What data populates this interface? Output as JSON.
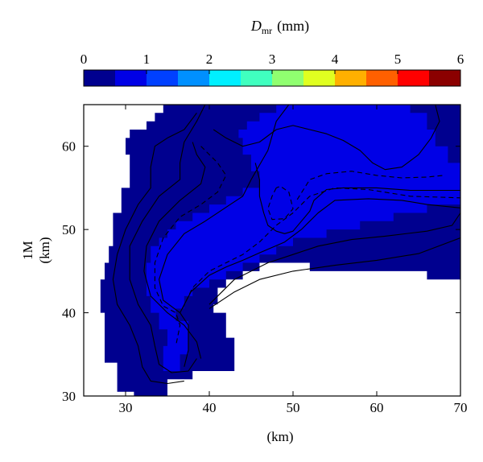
{
  "chart_data": {
    "type": "heatmap",
    "colorbar": {
      "label_main": "D",
      "label_sub": "mr",
      "label_unit": "(mm)",
      "ticks": [
        "0",
        "1",
        "2",
        "3",
        "4",
        "5",
        "6"
      ],
      "range": [
        0,
        6
      ],
      "bins": 12,
      "colors": [
        "#00008f",
        "#0000e6",
        "#0040ff",
        "#0090ff",
        "#00f0ff",
        "#40ffbf",
        "#90ff70",
        "#e0ff20",
        "#ffb000",
        "#ff6000",
        "#ff0000",
        "#8b0000"
      ]
    },
    "x_axis": {
      "label": "(km)",
      "ticks": [
        "30",
        "40",
        "50",
        "60",
        "70"
      ],
      "range": [
        25,
        70
      ]
    },
    "y_axis": {
      "label_line1": "1M",
      "label_line2": "(km)",
      "ticks": [
        "30",
        "40",
        "50",
        "60"
      ],
      "range": [
        30,
        65
      ]
    },
    "fields": {
      "outer_dark_region": {
        "color": "#00008f",
        "polygon": [
          [
            31,
            30
          ],
          [
            35,
            30
          ],
          [
            35,
            32
          ],
          [
            38,
            32
          ],
          [
            38,
            33
          ],
          [
            40,
            33
          ],
          [
            43,
            33
          ],
          [
            43,
            37
          ],
          [
            42,
            37
          ],
          [
            42,
            40
          ],
          [
            40.5,
            40
          ],
          [
            40.5,
            41
          ],
          [
            41,
            41
          ],
          [
            41,
            43
          ],
          [
            42,
            43
          ],
          [
            42,
            44
          ],
          [
            43,
            44
          ],
          [
            44,
            44
          ],
          [
            44,
            45
          ],
          [
            46,
            45
          ],
          [
            46,
            46
          ],
          [
            52,
            46
          ],
          [
            52,
            45
          ],
          [
            66,
            45
          ],
          [
            66,
            44
          ],
          [
            70,
            44
          ],
          [
            70,
            65
          ],
          [
            34.5,
            65
          ],
          [
            34.5,
            64
          ],
          [
            33.5,
            64
          ],
          [
            33.5,
            63
          ],
          [
            32.5,
            63
          ],
          [
            32.5,
            62
          ],
          [
            30.5,
            62
          ],
          [
            30.5,
            61
          ],
          [
            30,
            61
          ],
          [
            30,
            59
          ],
          [
            30.5,
            59
          ],
          [
            30.5,
            55
          ],
          [
            29.5,
            55
          ],
          [
            29.5,
            52
          ],
          [
            28.5,
            52
          ],
          [
            28.5,
            48
          ],
          [
            28,
            48
          ],
          [
            28,
            46
          ],
          [
            27.5,
            46
          ],
          [
            27.5,
            44
          ],
          [
            27,
            44
          ],
          [
            27,
            40
          ],
          [
            27.5,
            40
          ],
          [
            27.5,
            34
          ],
          [
            29,
            34
          ],
          [
            29,
            30.5
          ],
          [
            31,
            30.5
          ]
        ]
      },
      "inner_light_region": {
        "color": "#0000e6",
        "polygon": [
          [
            34.5,
            33
          ],
          [
            36.5,
            33
          ],
          [
            36.5,
            35
          ],
          [
            37.5,
            35
          ],
          [
            37.5,
            39
          ],
          [
            36,
            39
          ],
          [
            36,
            40.5
          ],
          [
            37,
            40.5
          ],
          [
            37,
            42
          ],
          [
            38,
            42
          ],
          [
            38,
            43
          ],
          [
            40,
            43
          ],
          [
            40,
            44
          ],
          [
            42,
            44
          ],
          [
            42,
            45
          ],
          [
            44,
            45
          ],
          [
            44,
            46
          ],
          [
            46,
            46
          ],
          [
            46,
            47
          ],
          [
            48,
            47
          ],
          [
            48,
            48
          ],
          [
            50,
            48
          ],
          [
            50,
            49
          ],
          [
            54,
            49
          ],
          [
            54,
            50
          ],
          [
            58,
            50
          ],
          [
            58,
            51
          ],
          [
            62,
            51
          ],
          [
            62,
            52
          ],
          [
            66,
            52
          ],
          [
            66,
            53
          ],
          [
            70,
            53
          ],
          [
            70,
            58
          ],
          [
            68.5,
            58
          ],
          [
            68.5,
            60
          ],
          [
            67,
            60
          ],
          [
            67,
            62
          ],
          [
            66,
            62
          ],
          [
            66,
            64
          ],
          [
            64,
            64
          ],
          [
            64,
            65
          ],
          [
            48,
            65
          ],
          [
            48,
            64
          ],
          [
            46,
            64
          ],
          [
            46,
            63
          ],
          [
            44.5,
            63
          ],
          [
            44.5,
            62
          ],
          [
            43.5,
            62
          ],
          [
            43.5,
            61
          ],
          [
            44,
            61
          ],
          [
            44,
            59
          ],
          [
            45,
            59
          ],
          [
            45,
            57
          ],
          [
            46,
            57
          ],
          [
            46,
            55
          ],
          [
            44,
            55
          ],
          [
            44,
            54
          ],
          [
            42,
            54
          ],
          [
            42,
            53
          ],
          [
            40,
            53
          ],
          [
            40,
            52
          ],
          [
            38,
            52
          ],
          [
            38,
            51
          ],
          [
            36,
            51
          ],
          [
            36,
            50
          ],
          [
            35,
            50
          ],
          [
            35,
            49
          ],
          [
            34,
            49
          ],
          [
            34,
            48
          ],
          [
            33,
            48
          ],
          [
            33,
            46
          ],
          [
            32.5,
            46
          ],
          [
            32.5,
            42
          ],
          [
            33,
            42
          ],
          [
            33,
            40
          ],
          [
            34,
            40
          ],
          [
            34,
            38
          ],
          [
            35,
            38
          ],
          [
            35,
            36
          ],
          [
            34.5,
            36
          ],
          [
            34.5,
            33
          ]
        ]
      }
    },
    "contours": [
      {
        "style": "solid",
        "points": [
          [
            38.5,
            64
          ],
          [
            37,
            62
          ],
          [
            35,
            61
          ],
          [
            33.5,
            60
          ],
          [
            33,
            57.5
          ],
          [
            33,
            55
          ],
          [
            31.5,
            53
          ],
          [
            30,
            50
          ],
          [
            29,
            47
          ],
          [
            28.5,
            44
          ],
          [
            29,
            41
          ],
          [
            30.5,
            38.5
          ],
          [
            31.5,
            36
          ],
          [
            32,
            33.5
          ],
          [
            33,
            31.8
          ],
          [
            35,
            31.5
          ],
          [
            37,
            31.8
          ]
        ]
      },
      {
        "style": "solid",
        "points": [
          [
            39.5,
            65
          ],
          [
            38.5,
            63
          ],
          [
            37,
            60.5
          ],
          [
            36.5,
            58
          ],
          [
            36.5,
            56
          ],
          [
            34,
            54
          ],
          [
            32,
            51
          ],
          [
            30.5,
            48
          ],
          [
            30.5,
            44
          ],
          [
            31.5,
            41
          ],
          [
            33,
            38.5
          ],
          [
            33.5,
            36
          ],
          [
            34,
            33.8
          ],
          [
            35.5,
            32.8
          ],
          [
            37.5,
            33
          ],
          [
            38.5,
            34.5
          ]
        ]
      },
      {
        "style": "solid",
        "points": [
          [
            38,
            60.5
          ],
          [
            38.5,
            59
          ],
          [
            39.5,
            57.5
          ],
          [
            39,
            55.5
          ],
          [
            36.5,
            53.5
          ],
          [
            34,
            51
          ],
          [
            32.5,
            48
          ],
          [
            32.2,
            45
          ],
          [
            33,
            42
          ],
          [
            35,
            40
          ],
          [
            37,
            38.5
          ],
          [
            38.5,
            36.5
          ],
          [
            39,
            34.5
          ]
        ]
      },
      {
        "style": "dashed",
        "points": [
          [
            39,
            60
          ],
          [
            41,
            58
          ],
          [
            42,
            56.5
          ],
          [
            41,
            54.5
          ],
          [
            39,
            53
          ],
          [
            36.5,
            51.5
          ],
          [
            34.5,
            49
          ],
          [
            33.5,
            46
          ],
          [
            33.5,
            43
          ],
          [
            34.5,
            40.8
          ],
          [
            36,
            40
          ],
          [
            36.5,
            38.5
          ],
          [
            36,
            36
          ]
        ]
      },
      {
        "style": "solid",
        "points": [
          [
            49.5,
            65
          ],
          [
            48,
            63
          ],
          [
            47,
            59.5
          ],
          [
            45,
            56
          ],
          [
            44,
            54
          ],
          [
            42.5,
            53
          ],
          [
            39.5,
            51
          ],
          [
            37,
            49.5
          ],
          [
            35,
            47
          ],
          [
            34,
            44
          ],
          [
            34.5,
            41.5
          ],
          [
            36.5,
            40
          ],
          [
            37.5,
            38.5
          ],
          [
            37.5,
            35.5
          ],
          [
            37,
            33.5
          ]
        ]
      },
      {
        "style": "dashed",
        "points": [
          [
            36.8,
            40.5
          ],
          [
            38,
            43
          ],
          [
            40,
            45
          ],
          [
            42,
            46
          ],
          [
            44,
            47
          ],
          [
            46,
            48.5
          ],
          [
            48,
            50.5
          ],
          [
            50,
            52
          ],
          [
            52,
            54
          ],
          [
            55,
            55
          ],
          [
            59,
            54.8
          ],
          [
            64,
            54
          ],
          [
            70,
            53.8
          ]
        ]
      },
      {
        "style": "solid",
        "points": [
          [
            36.5,
            40
          ],
          [
            37.8,
            42.5
          ],
          [
            40,
            44.5
          ],
          [
            42,
            45.5
          ],
          [
            44,
            46.3
          ],
          [
            46,
            47.2
          ],
          [
            49,
            48.5
          ],
          [
            51,
            50
          ],
          [
            53,
            52
          ],
          [
            55,
            53.5
          ],
          [
            59,
            53.7
          ],
          [
            63,
            53.5
          ],
          [
            66,
            53
          ],
          [
            70,
            52.6
          ]
        ]
      },
      {
        "style": "solid",
        "points": [
          [
            40,
            41
          ],
          [
            43,
            44
          ],
          [
            47,
            46
          ],
          [
            50,
            47
          ],
          [
            53,
            48
          ],
          [
            57,
            48.8
          ],
          [
            61,
            49.2
          ],
          [
            66,
            49.8
          ],
          [
            69,
            50.5
          ],
          [
            70,
            52
          ]
        ]
      },
      {
        "style": "solid",
        "points": [
          [
            40,
            40.5
          ],
          [
            43,
            42.5
          ],
          [
            46,
            44
          ],
          [
            50,
            45
          ],
          [
            55,
            45.7
          ],
          [
            60,
            46.3
          ],
          [
            65,
            47.1
          ],
          [
            70,
            49
          ]
        ]
      },
      {
        "style": "solid",
        "points": [
          [
            40.5,
            62
          ],
          [
            42,
            61
          ],
          [
            44,
            60
          ],
          [
            46,
            60.5
          ],
          [
            48,
            62
          ],
          [
            50,
            62.5
          ],
          [
            52,
            62
          ],
          [
            54,
            61.5
          ],
          [
            56,
            60.7
          ],
          [
            58,
            59.5
          ],
          [
            59.5,
            58
          ],
          [
            61,
            57.2
          ],
          [
            63,
            57.5
          ],
          [
            65,
            59
          ],
          [
            66.5,
            61
          ],
          [
            67.5,
            63
          ],
          [
            67,
            65
          ]
        ]
      },
      {
        "style": "dashed",
        "points": [
          [
            48,
            55
          ],
          [
            47.5,
            54
          ],
          [
            47,
            52.5
          ],
          [
            47.5,
            51.2
          ],
          [
            49,
            51.3
          ],
          [
            50,
            52.5
          ],
          [
            49.5,
            54.5
          ],
          [
            48.5,
            55.2
          ],
          [
            48,
            55
          ]
        ]
      },
      {
        "style": "solid",
        "points": [
          [
            45.5,
            58
          ],
          [
            46,
            56
          ],
          [
            46,
            54
          ],
          [
            46.5,
            52
          ],
          [
            47,
            50.5
          ],
          [
            48,
            49.8
          ],
          [
            49,
            49.5
          ],
          [
            50,
            49.8
          ],
          [
            51,
            51
          ],
          [
            52,
            52.2
          ],
          [
            52.5,
            53.5
          ],
          [
            54,
            54.8
          ],
          [
            56,
            55
          ],
          [
            60,
            55
          ],
          [
            64,
            54.7
          ],
          [
            70,
            54.7
          ]
        ]
      },
      {
        "style": "dashed",
        "points": [
          [
            50.5,
            53.6
          ],
          [
            51.5,
            55.2
          ],
          [
            52,
            56
          ],
          [
            54,
            56.7
          ],
          [
            57,
            57
          ],
          [
            60,
            56.5
          ],
          [
            63,
            56.2
          ],
          [
            66,
            56.3
          ],
          [
            68,
            56.5
          ]
        ]
      }
    ]
  }
}
